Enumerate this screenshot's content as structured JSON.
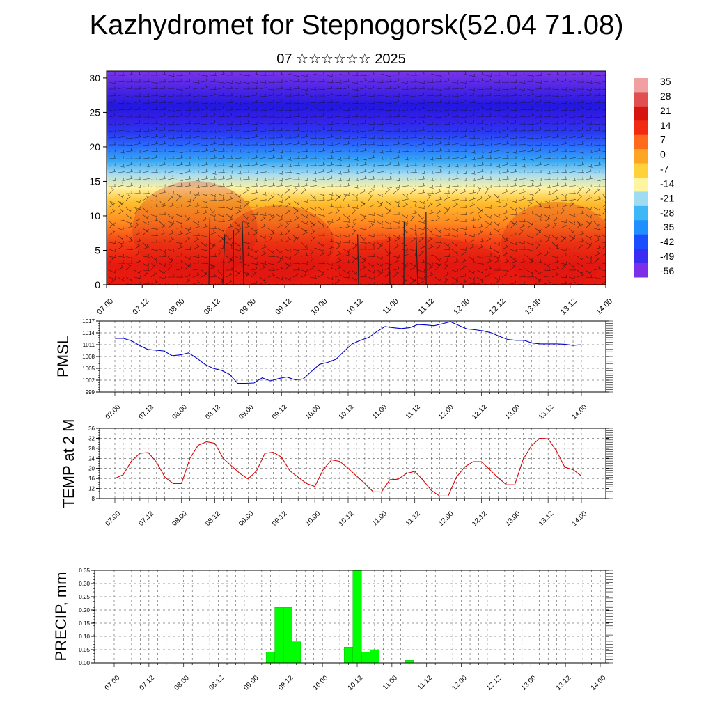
{
  "title": "Kazhydromet for Stepnogorsk(52.04 71.08)",
  "subtitle": "07 ☆☆☆☆☆☆ 2025",
  "colorbar": {
    "labels": [
      "35",
      "28",
      "21",
      "14",
      "7",
      "0",
      "-7",
      "-14",
      "-21",
      "-28",
      "-35",
      "-42",
      "-49",
      "-56"
    ]
  },
  "chart_data": [
    {
      "type": "heatmap",
      "title": "",
      "xlabel": "",
      "ylabel": "",
      "x_ticks": [
        "07.00",
        "07.12",
        "08.00",
        "08.12",
        "09.00",
        "09.12",
        "10.00",
        "10.12",
        "11.00",
        "11.12",
        "12.00",
        "12.12",
        "13.00",
        "13.12",
        "14.00"
      ],
      "y_ticks": [
        "0",
        "5",
        "10",
        "15",
        "20",
        "25",
        "30"
      ],
      "ylim": [
        0,
        31
      ],
      "overlay": "wind barbs",
      "colormap": {
        "min": -56,
        "max": 35,
        "colors": [
          "#7b2fe8",
          "#3a2cf0",
          "#1a4dff",
          "#1f8fff",
          "#3bb8f5",
          "#9fdcf2",
          "#fff4a0",
          "#ffd23c",
          "#ffa526",
          "#ff6b1a",
          "#f22a12",
          "#d61410",
          "#e05050",
          "#f0a0a0"
        ]
      },
      "temperature_profile_by_height": [
        {
          "height": 0,
          "value": 28
        },
        {
          "height": 3,
          "value": 25
        },
        {
          "height": 6,
          "value": 18
        },
        {
          "height": 9,
          "value": 10
        },
        {
          "height": 12,
          "value": 3
        },
        {
          "height": 14,
          "value": -5
        },
        {
          "height": 16,
          "value": -15
        },
        {
          "height": 18,
          "value": -25
        },
        {
          "height": 20,
          "value": -35
        },
        {
          "height": 22,
          "value": -45
        },
        {
          "height": 24,
          "value": -55
        },
        {
          "height": 26,
          "value": -56
        },
        {
          "height": 31,
          "value": -50
        }
      ]
    },
    {
      "type": "line",
      "ylabel": "PMSL",
      "y_ticks": [
        "999",
        "1002",
        "1005",
        "1008",
        "1011",
        "1014",
        "1017"
      ],
      "ylim": [
        999,
        1017
      ],
      "x_ticks": [
        "07.00",
        "07.12",
        "08.00",
        "08.12",
        "09.00",
        "09.12",
        "10.00",
        "10.12",
        "11.00",
        "11.12",
        "12.00",
        "12.12",
        "13.00",
        "13.12",
        "14.00"
      ],
      "color": "#0000cc",
      "values": [
        1012.6,
        1012.6,
        1012.0,
        1010.8,
        1009.8,
        1009.6,
        1009.4,
        1008.2,
        1008.4,
        1008.9,
        1007.6,
        1006.0,
        1005.0,
        1004.5,
        1003.5,
        1001.2,
        1001.2,
        1001.3,
        1002.6,
        1001.8,
        1002.4,
        1002.8,
        1002.1,
        1002.3,
        1004.2,
        1006.0,
        1006.5,
        1007.3,
        1009.3,
        1011.2,
        1012.1,
        1012.8,
        1014.3,
        1015.6,
        1015.3,
        1015.1,
        1015.3,
        1016.1,
        1016.0,
        1015.8,
        1016.3,
        1016.8,
        1015.9,
        1015.0,
        1014.8,
        1014.5,
        1014.0,
        1013.1,
        1012.3,
        1012.1,
        1012.1,
        1011.4,
        1011.2,
        1011.2,
        1011.2,
        1011.1,
        1010.8,
        1011.0
      ]
    },
    {
      "type": "line",
      "ylabel": "TEMP at 2 M",
      "y_ticks": [
        "8",
        "12",
        "16",
        "20",
        "24",
        "28",
        "32",
        "36"
      ],
      "ylim": [
        8,
        36
      ],
      "x_ticks": [
        "07.00",
        "07.12",
        "08.00",
        "08.12",
        "09.00",
        "09.12",
        "10.00",
        "10.12",
        "11.00",
        "11.12",
        "12.00",
        "12.12",
        "13.00",
        "13.12",
        "14.00"
      ],
      "color": "#dd0000",
      "values": [
        16.0,
        17.5,
        23.0,
        26.0,
        26.3,
        22.5,
        16.5,
        14.0,
        14.0,
        24.0,
        29.2,
        30.6,
        30.0,
        24.0,
        21.0,
        18.0,
        15.8,
        19.0,
        26.0,
        26.4,
        24.5,
        19.0,
        16.5,
        14.0,
        12.8,
        19.5,
        23.4,
        22.8,
        20.0,
        17.0,
        14.0,
        10.7,
        10.6,
        15.5,
        15.7,
        18.0,
        18.8,
        15.3,
        11.2,
        9.0,
        9.0,
        16.5,
        20.6,
        22.7,
        22.7,
        19.5,
        16.3,
        13.5,
        13.5,
        23.6,
        29.0,
        32.0,
        31.8,
        27.0,
        20.5,
        19.5,
        17.0
      ]
    },
    {
      "type": "bar",
      "ylabel": "PRECIP, mm",
      "y_ticks": [
        "0.00",
        "0.05",
        "0.10",
        "0.15",
        "0.20",
        "0.25",
        "0.30",
        "0.35"
      ],
      "ylim": [
        0,
        0.35
      ],
      "x_ticks": [
        "07.00",
        "07.12",
        "08.00",
        "08.12",
        "09.00",
        "09.12",
        "10.00",
        "10.12",
        "11.00",
        "11.12",
        "12.00",
        "12.12",
        "13.00",
        "13.12",
        "14.00"
      ],
      "color": "#00ff00",
      "values": [
        0,
        0,
        0,
        0,
        0,
        0,
        0,
        0,
        0,
        0,
        0,
        0,
        0,
        0,
        0,
        0,
        0,
        0,
        0.04,
        0.21,
        0.21,
        0.08,
        0,
        0,
        0,
        0,
        0,
        0.06,
        0.35,
        0.04,
        0.05,
        0,
        0,
        0,
        0.01,
        0,
        0,
        0,
        0,
        0,
        0,
        0,
        0,
        0,
        0,
        0,
        0,
        0,
        0,
        0,
        0,
        0,
        0,
        0,
        0,
        0,
        0
      ]
    }
  ]
}
